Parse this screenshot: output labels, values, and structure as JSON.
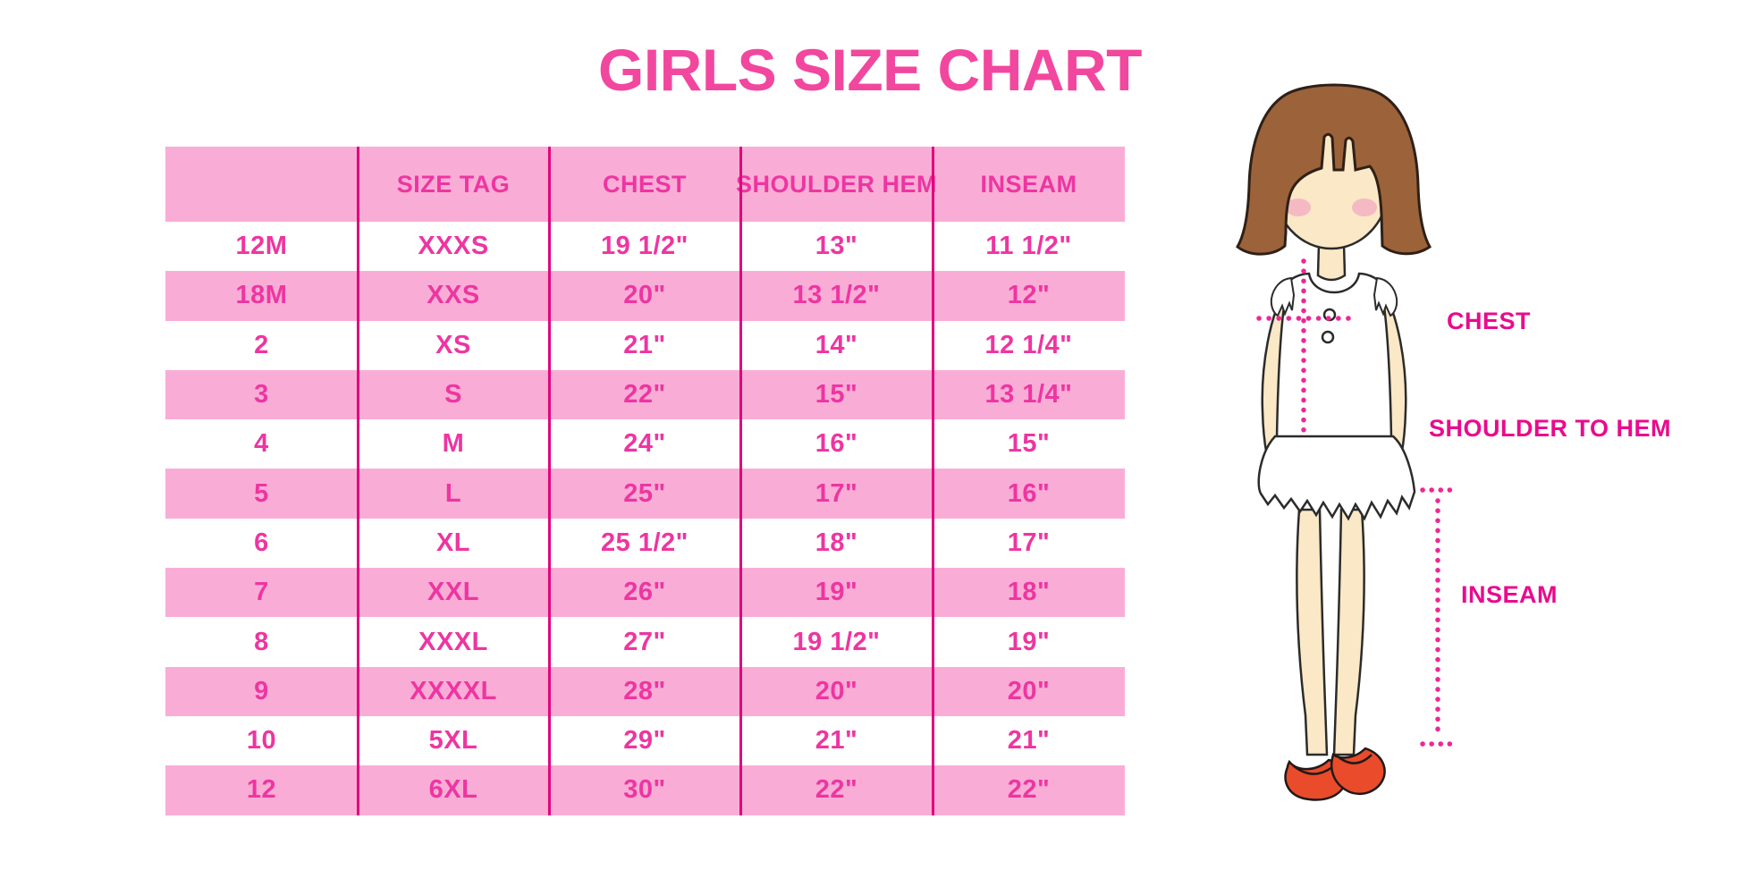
{
  "title": "GIRLS SIZE CHART",
  "table": {
    "headers": [
      "",
      "SIZE TAG",
      "CHEST",
      "SHOULDER HEM",
      "INSEAM"
    ],
    "rows": [
      [
        "12M",
        "XXXS",
        "19 1/2\"",
        "13\"",
        "11 1/2\""
      ],
      [
        "18M",
        "XXS",
        "20\"",
        "13 1/2\"",
        "12\""
      ],
      [
        "2",
        "XS",
        "21\"",
        "14\"",
        "12 1/4\""
      ],
      [
        "3",
        "S",
        "22\"",
        "15\"",
        "13 1/4\""
      ],
      [
        "4",
        "M",
        "24\"",
        "16\"",
        "15\""
      ],
      [
        "5",
        "L",
        "25\"",
        "17\"",
        "16\""
      ],
      [
        "6",
        "XL",
        "25 1/2\"",
        "18\"",
        "17\""
      ],
      [
        "7",
        "XXL",
        "26\"",
        "19\"",
        "18\""
      ],
      [
        "8",
        "XXXL",
        "27\"",
        "19 1/2\"",
        "19\""
      ],
      [
        "9",
        "XXXXL",
        "28\"",
        "20\"",
        "20\""
      ],
      [
        "10",
        "5XL",
        "29\"",
        "21\"",
        "21\""
      ],
      [
        "12",
        "6XL",
        "30\"",
        "22\"",
        "22\""
      ]
    ]
  },
  "diagram": {
    "labels": {
      "chest": "CHEST",
      "shoulder_to_hem": "SHOULDER TO HEM",
      "inseam": "INSEAM"
    }
  },
  "colors": {
    "title_pink": "#F2479E",
    "row_band_pink": "#F9ADD6",
    "cell_text_pink": "#EE35A1",
    "table_line_magenta": "#E2057F",
    "label_magenta": "#E90B8D",
    "dotted_line_pink": "#ED2893",
    "hair_brown": "#9C6239",
    "skin_tone": "#FAE8C6",
    "shoe_red": "#E94B2B"
  }
}
